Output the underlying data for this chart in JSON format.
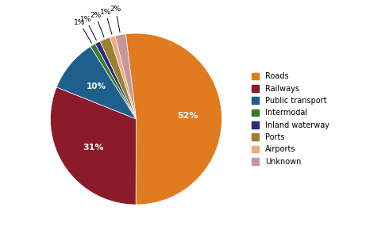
{
  "labels": [
    "Roads",
    "Railways",
    "Public transport",
    "Intermodal",
    "Inland waterway",
    "Ports",
    "Airports",
    "Unknown"
  ],
  "values": [
    52,
    31,
    10,
    1,
    1,
    2,
    1,
    2
  ],
  "colors": [
    "#E07B20",
    "#8B1A2A",
    "#1F5F8B",
    "#3A7A2A",
    "#2C2C7A",
    "#9B8030",
    "#F0A882",
    "#C49898"
  ],
  "pct_labels": [
    "52%",
    "31%",
    "10%",
    "1%",
    "1%",
    "2%",
    "1%",
    "2%"
  ],
  "legend_labels": [
    "Roads",
    "Railways",
    "Public transport",
    "Intermodal",
    "Inland waterway",
    "Ports",
    "Airports",
    "Unknown"
  ],
  "startangle": 97,
  "figsize": [
    4.9,
    3.0
  ],
  "dpi": 100
}
